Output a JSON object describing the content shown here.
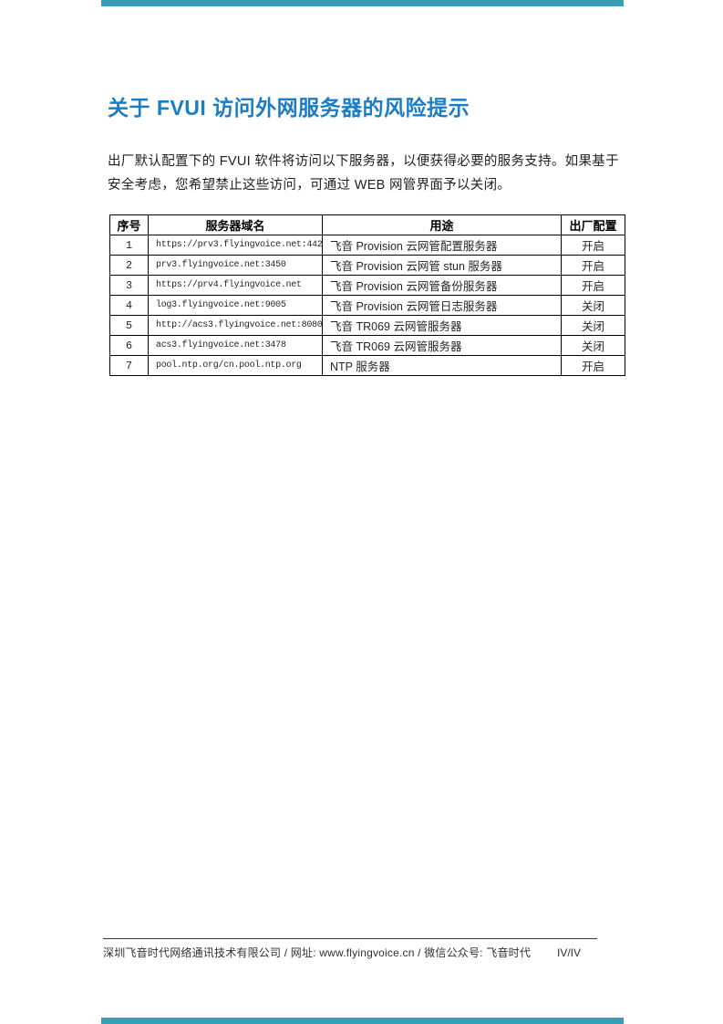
{
  "page": {
    "accent_color": "#359fb5",
    "title_color": "#1a7dc5",
    "title": "关于 FVUI 访问外网服务器的风险提示",
    "intro": "出厂默认配置下的 FVUI 软件将访问以下服务器，以便获得必要的服务支持。如果基于安全考虑，您希望禁止这些访问，可通过 WEB 网管界面予以关闭。"
  },
  "table": {
    "headers": [
      "序号",
      "服务器域名",
      "用途",
      "出厂配置"
    ],
    "rows": [
      [
        "1",
        "https://prv3.flyingvoice.net:442",
        "飞音 Provision 云网管配置服务器",
        "开启"
      ],
      [
        "2",
        "prv3.flyingvoice.net:3450",
        "飞音 Provision 云网管 stun 服务器",
        "开启"
      ],
      [
        "3",
        "https://prv4.flyingvoice.net",
        "飞音 Provision 云网管备份服务器",
        "开启"
      ],
      [
        "4",
        "log3.flyingvoice.net:9005",
        "飞音 Provision 云网管日志服务器",
        "关闭"
      ],
      [
        "5",
        "http://acs3.flyingvoice.net:8080",
        "飞音 TR069 云网管服务器",
        "关闭"
      ],
      [
        "6",
        "acs3.flyingvoice.net:3478",
        "飞音 TR069 云网管服务器",
        "关闭"
      ],
      [
        "7",
        "pool.ntp.org/cn.pool.ntp.org",
        "NTP 服务器",
        "开启"
      ]
    ]
  },
  "footer": {
    "company_info": "深圳飞音时代网络通讯技术有限公司 / 网址: www.flyingvoice.cn / 微信公众号: 飞音时代",
    "page_number": "IV/IV"
  }
}
